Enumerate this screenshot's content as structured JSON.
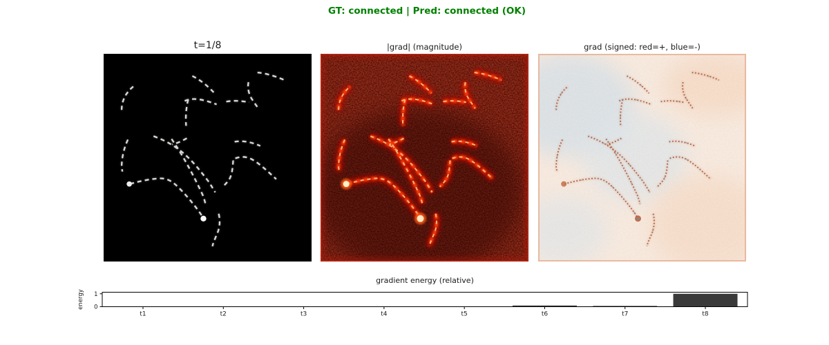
{
  "figure": {
    "title": "GT: connected | Pred: connected (OK)",
    "title_color": "#008000"
  },
  "panels": [
    {
      "title": "t=1/8"
    },
    {
      "title": "|grad| (magnitude)"
    },
    {
      "title": "grad (signed: red=+, blue=-)"
    }
  ],
  "chart_data": {
    "type": "bar",
    "title": "gradient energy (relative)",
    "xlabel": "",
    "ylabel": "energy",
    "categories": [
      "t1",
      "t2",
      "t3",
      "t4",
      "t5",
      "t6",
      "t7",
      "t8"
    ],
    "values": [
      0,
      0,
      0,
      0,
      0,
      0.09,
      0.06,
      1.0
    ],
    "yticks": [
      0,
      1
    ],
    "ylim": [
      0,
      1.12
    ],
    "bar_color": "#3a3a3a",
    "grid": false,
    "legend": false
  }
}
